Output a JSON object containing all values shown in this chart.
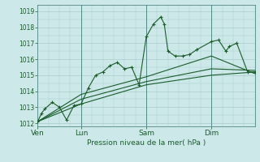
{
  "background_color": "#cce8e8",
  "grid_color": "#aacccc",
  "line_color": "#1a5c2a",
  "xlabel": "Pression niveau de la mer( hPa )",
  "ylim": [
    1011.8,
    1019.4
  ],
  "yticks": [
    1012,
    1013,
    1014,
    1015,
    1016,
    1017,
    1018,
    1019
  ],
  "day_labels": [
    "Ven",
    "Lun",
    "Sam",
    "Dim"
  ],
  "day_positions": [
    0.0,
    0.2,
    0.5,
    0.8
  ],
  "xlim": [
    0.0,
    1.0
  ],
  "line1_x": [
    0.0,
    0.017,
    0.033,
    0.067,
    0.1,
    0.133,
    0.167,
    0.2,
    0.233,
    0.267,
    0.3,
    0.333,
    0.367,
    0.4,
    0.433,
    0.467,
    0.5,
    0.533,
    0.567,
    0.583,
    0.6,
    0.633,
    0.667,
    0.7,
    0.733,
    0.8,
    0.833,
    0.867,
    0.883,
    0.917,
    0.967,
    1.0
  ],
  "line1_y": [
    1012.1,
    1012.6,
    1012.9,
    1013.3,
    1013.0,
    1012.2,
    1013.1,
    1013.2,
    1014.2,
    1015.0,
    1015.2,
    1015.6,
    1015.8,
    1015.4,
    1015.5,
    1014.4,
    1017.4,
    1018.2,
    1018.65,
    1018.2,
    1016.5,
    1016.2,
    1016.2,
    1016.3,
    1016.6,
    1017.1,
    1017.2,
    1016.5,
    1016.8,
    1017.0,
    1015.2,
    1015.2
  ],
  "line2_x": [
    0.0,
    0.2,
    0.5,
    0.8,
    1.0
  ],
  "line2_y": [
    1012.1,
    1013.2,
    1014.4,
    1015.0,
    1015.2
  ],
  "line3_x": [
    0.0,
    0.2,
    0.5,
    0.8,
    1.0
  ],
  "line3_y": [
    1012.1,
    1013.5,
    1014.6,
    1015.4,
    1015.3
  ],
  "line4_x": [
    0.0,
    0.2,
    0.5,
    0.8,
    1.0
  ],
  "line4_y": [
    1012.1,
    1013.8,
    1014.9,
    1016.2,
    1015.1
  ]
}
